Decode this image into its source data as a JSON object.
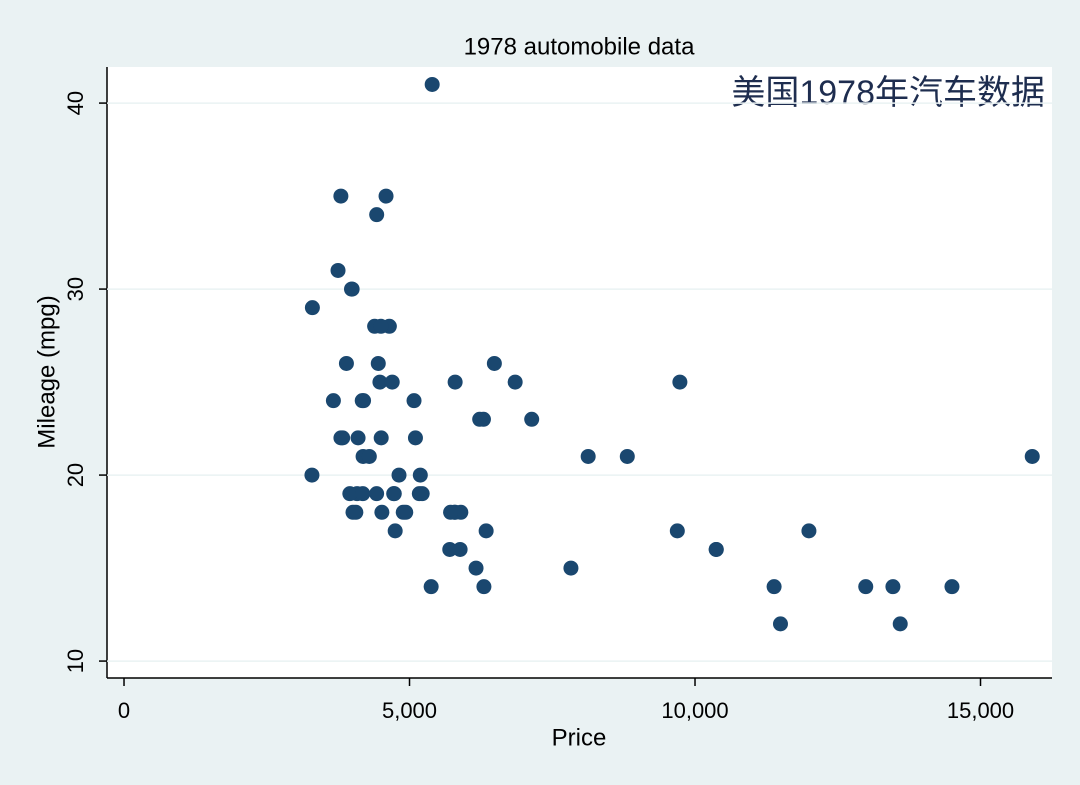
{
  "chart_data": {
    "type": "scatter",
    "title": "1978 automobile data",
    "annotation": "美国1978年汽车数据",
    "x_label": "Price",
    "y_label": "Mileage (mpg)",
    "color": "#1a476f",
    "grid": true,
    "xlim": [
      -298,
      16252
    ],
    "ylim": [
      9.09,
      41.94
    ],
    "xticks": [
      0,
      {
        "value": 5000,
        "label": "5,000"
      },
      {
        "value": 10000,
        "label": "10,000"
      },
      {
        "value": 15000,
        "label": "15,000"
      }
    ],
    "yticks": [
      10,
      20,
      30,
      40
    ],
    "x": [
      4099,
      4749,
      3799,
      4816,
      7827,
      5788,
      4453,
      5189,
      10372,
      4082,
      11385,
      14500,
      15906,
      3299,
      5705,
      4504,
      5104,
      3667,
      3955,
      3984,
      4010,
      5886,
      6342,
      4389,
      4187,
      11497,
      13594,
      13466,
      3829,
      5379,
      6165,
      4516,
      6303,
      3291,
      8814,
      5172,
      4733,
      4890,
      4181,
      4195,
      10371,
      4647,
      4425,
      4482,
      6486,
      4060,
      5798,
      4934,
      5222,
      4723,
      4424,
      4172,
      9690,
      6295,
      9735,
      6229,
      4589,
      5079,
      8129,
      4296,
      5799,
      4499,
      3995,
      12990,
      3895,
      3798,
      5899,
      3748,
      5719,
      7140,
      5397,
      4697,
      6850,
      11995
    ],
    "values": [
      22,
      17,
      22,
      20,
      15,
      18,
      26,
      20,
      16,
      19,
      14,
      14,
      21,
      29,
      16,
      22,
      22,
      24,
      19,
      30,
      18,
      16,
      17,
      28,
      21,
      12,
      12,
      14,
      22,
      14,
      15,
      18,
      14,
      20,
      21,
      19,
      19,
      18,
      19,
      24,
      16,
      28,
      34,
      25,
      26,
      18,
      18,
      18,
      19,
      19,
      19,
      24,
      17,
      23,
      25,
      23,
      35,
      24,
      21,
      21,
      25,
      28,
      30,
      14,
      26,
      35,
      18,
      31,
      18,
      23,
      41,
      25,
      25,
      17
    ]
  }
}
